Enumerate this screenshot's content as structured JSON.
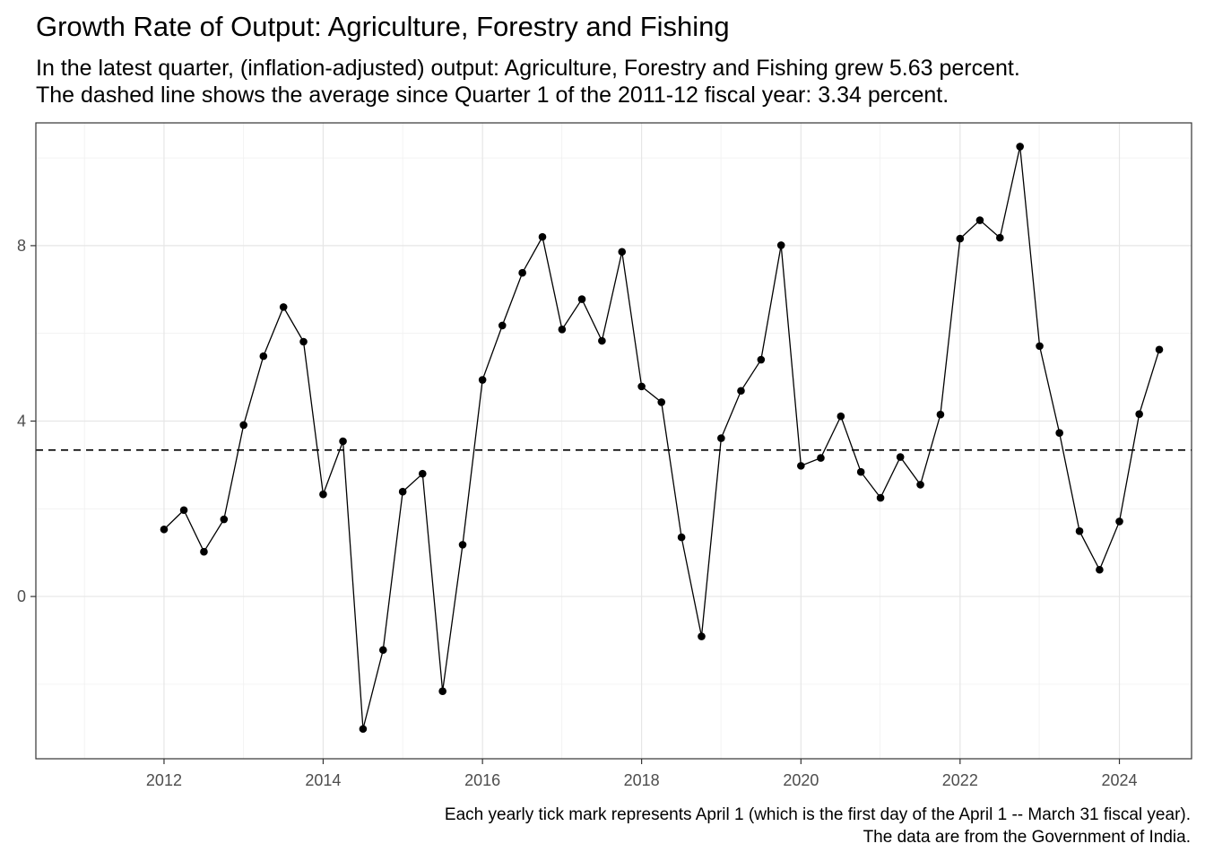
{
  "title": "Growth Rate of Output: Agriculture, Forestry and Fishing",
  "subtitle_lines": [
    "In the latest quarter, (inflation-adjusted) output: Agriculture, Forestry and Fishing grew 5.63 percent.",
    "The dashed line shows the average since Quarter 1 of the 2011-12 fiscal year: 3.34 percent."
  ],
  "caption_lines": [
    "Each yearly tick mark represents April 1 (which is the first day of the April 1 -- March 31 fiscal year).",
    "The data are from the Government of India."
  ],
  "chart_data": {
    "type": "line",
    "title": "Growth Rate of Output: Agriculture, Forestry and Fishing",
    "xlabel": "",
    "ylabel": "",
    "x_tick_labels": [
      "2012",
      "2014",
      "2016",
      "2018",
      "2020",
      "2022",
      "2024"
    ],
    "y_tick_labels": [
      "0",
      "4",
      "8"
    ],
    "xlim": [
      "2010-08-22",
      "2025-02-26"
    ],
    "ylim": [
      -3.7,
      10.8
    ],
    "grid": true,
    "reference_line": {
      "value": 3.34,
      "style": "dashed"
    },
    "series": [
      {
        "points": [
          {
            "x": "2012-04-01",
            "y": 1.53
          },
          {
            "x": "2012-07-01",
            "y": 1.97
          },
          {
            "x": "2012-10-01",
            "y": 1.02
          },
          {
            "x": "2013-01-01",
            "y": 1.76
          },
          {
            "x": "2013-04-01",
            "y": 3.91
          },
          {
            "x": "2013-07-01",
            "y": 5.48
          },
          {
            "x": "2013-10-01",
            "y": 6.6
          },
          {
            "x": "2014-01-01",
            "y": 5.81
          },
          {
            "x": "2014-04-01",
            "y": 2.33
          },
          {
            "x": "2014-07-01",
            "y": 3.54
          },
          {
            "x": "2014-10-01",
            "y": -3.02
          },
          {
            "x": "2015-01-01",
            "y": -1.22
          },
          {
            "x": "2015-04-01",
            "y": 2.39
          },
          {
            "x": "2015-07-01",
            "y": 2.8
          },
          {
            "x": "2015-10-01",
            "y": -2.16
          },
          {
            "x": "2016-01-01",
            "y": 1.18
          },
          {
            "x": "2016-04-01",
            "y": 4.94
          },
          {
            "x": "2016-07-01",
            "y": 6.18
          },
          {
            "x": "2016-10-01",
            "y": 7.38
          },
          {
            "x": "2017-01-01",
            "y": 8.2
          },
          {
            "x": "2017-04-01",
            "y": 6.09
          },
          {
            "x": "2017-07-01",
            "y": 6.78
          },
          {
            "x": "2017-10-01",
            "y": 5.83
          },
          {
            "x": "2018-01-01",
            "y": 7.86
          },
          {
            "x": "2018-04-01",
            "y": 4.79
          },
          {
            "x": "2018-07-01",
            "y": 4.43
          },
          {
            "x": "2018-10-01",
            "y": 1.35
          },
          {
            "x": "2019-01-01",
            "y": -0.91
          },
          {
            "x": "2019-04-01",
            "y": 3.61
          },
          {
            "x": "2019-07-01",
            "y": 4.69
          },
          {
            "x": "2019-10-01",
            "y": 5.4
          },
          {
            "x": "2020-01-01",
            "y": 8.01
          },
          {
            "x": "2020-04-01",
            "y": 2.98
          },
          {
            "x": "2020-07-01",
            "y": 3.16
          },
          {
            "x": "2020-10-01",
            "y": 4.11
          },
          {
            "x": "2021-01-01",
            "y": 2.84
          },
          {
            "x": "2021-04-01",
            "y": 2.25
          },
          {
            "x": "2021-07-01",
            "y": 3.18
          },
          {
            "x": "2021-10-01",
            "y": 2.55
          },
          {
            "x": "2022-01-01",
            "y": 4.15
          },
          {
            "x": "2022-04-01",
            "y": 8.16
          },
          {
            "x": "2022-07-01",
            "y": 8.58
          },
          {
            "x": "2022-10-01",
            "y": 8.18
          },
          {
            "x": "2023-01-01",
            "y": 10.26
          },
          {
            "x": "2023-04-01",
            "y": 5.71
          },
          {
            "x": "2023-07-01",
            "y": 3.73
          },
          {
            "x": "2023-10-01",
            "y": 1.49
          },
          {
            "x": "2024-01-01",
            "y": 0.61
          },
          {
            "x": "2024-04-01",
            "y": 1.71
          },
          {
            "x": "2024-07-01",
            "y": 4.16
          },
          {
            "x": "2024-10-01",
            "y": 5.63
          }
        ]
      }
    ]
  }
}
